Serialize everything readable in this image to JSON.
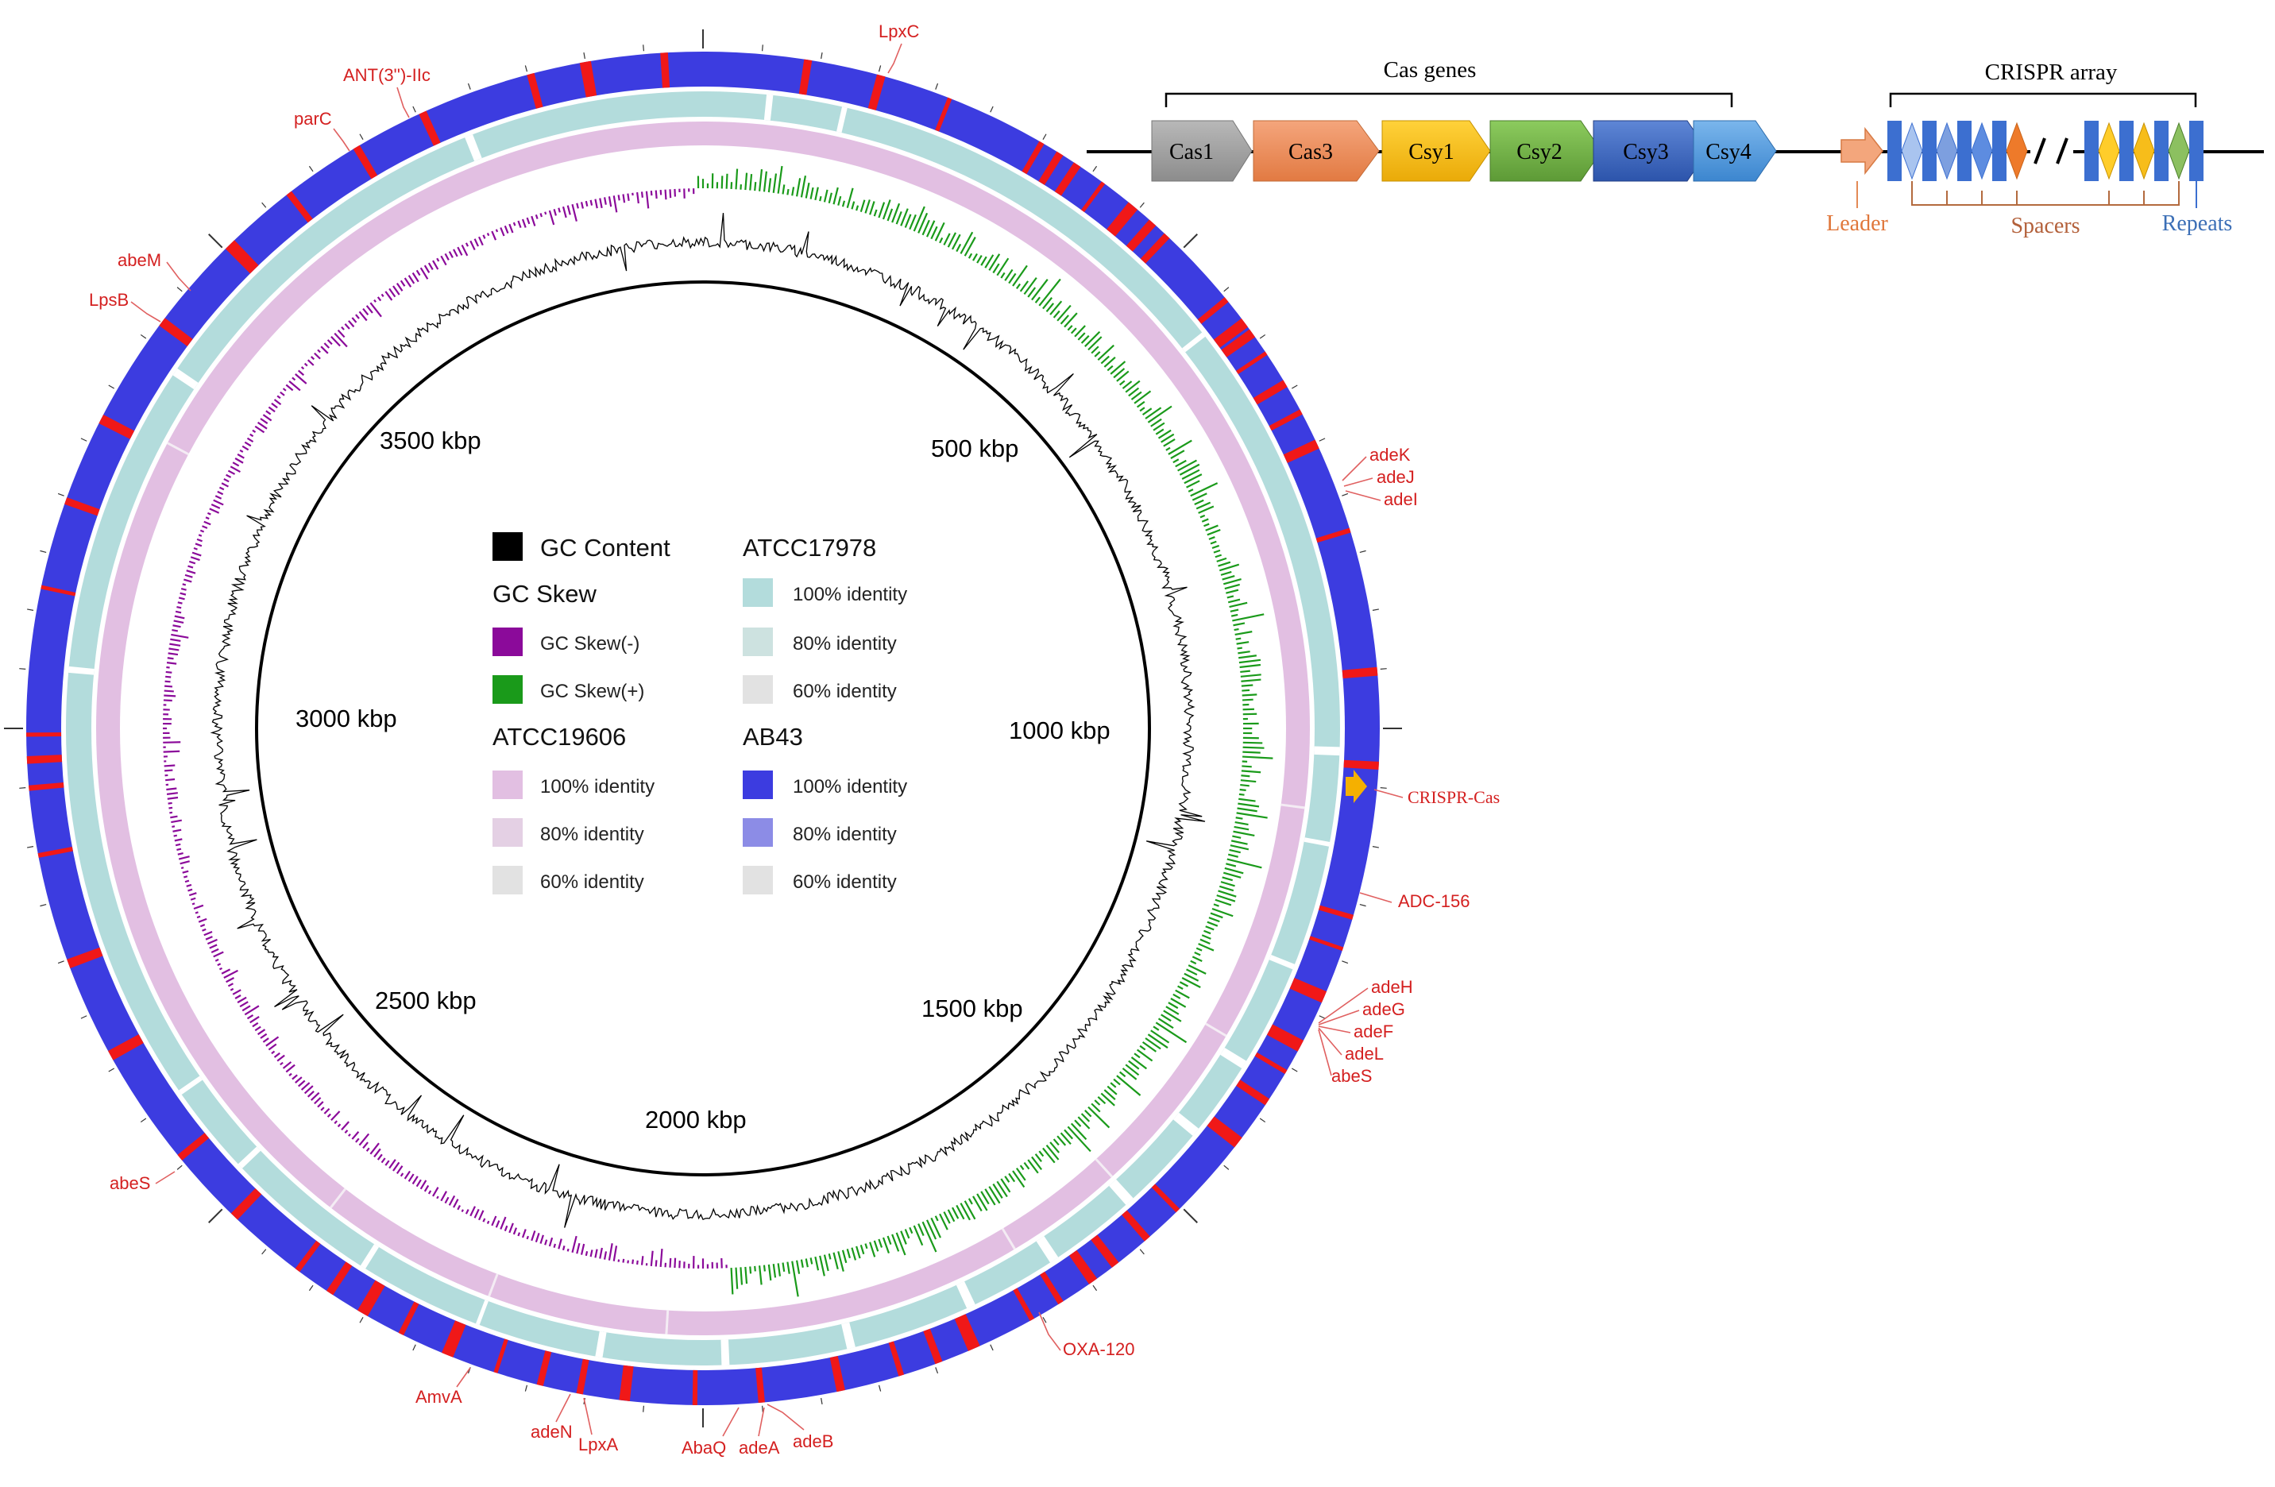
{
  "circular_map": {
    "kbp_labels": [
      "500 kbp",
      "1000 kbp",
      "1500 kbp",
      "2000 kbp",
      "2500 kbp",
      "3000 kbp",
      "3500 kbp"
    ],
    "gene_labels": [
      "LpxC",
      "ANT(3'')-IIc",
      "parC",
      "abeM",
      "LpsB",
      "adeK",
      "adeJ",
      "adeI",
      "CRISPR-Cas",
      "ADC-156",
      "adeH",
      "adeG",
      "adeF",
      "adeL",
      "abeS",
      "OXA-120",
      "adeB",
      "adeA",
      "AbaQ",
      "LpxA",
      "adeN",
      "AmvA",
      "abeS"
    ],
    "colors": {
      "ab43": "#3c3ce0",
      "atcc17978": "#b3dcdc",
      "atcc19606": "#e2bfe2",
      "gc_content": "#000000",
      "skew_minus": "#8b0a9a",
      "skew_plus": "#1a9a1a",
      "gene_label": "#d42020",
      "crispr_marker": "#f5b000"
    }
  },
  "legend": {
    "gc_content": "GC Content",
    "gc_skew": "GC Skew",
    "skew_minus": "GC Skew(-)",
    "skew_plus": "GC Skew(+)",
    "atcc19606": "ATCC19606",
    "atcc19606_100": "100% identity",
    "atcc19606_80": "80% identity",
    "atcc19606_60": "60% identity",
    "atcc17978": "ATCC17978",
    "atcc17978_100": "100% identity",
    "atcc17978_80": "80% identity",
    "atcc17978_60": "60% identity",
    "ab43": "AB43",
    "ab43_100": "100% identity",
    "ab43_80": "80% identity",
    "ab43_60": "60% identity"
  },
  "cas_diagram": {
    "cas_genes_label": "Cas genes",
    "crispr_array_label": "CRISPR array",
    "genes": [
      "Cas1",
      "Cas3",
      "Csy1",
      "Csy2",
      "Csy3",
      "Csy4"
    ],
    "leader": "Leader",
    "spacers": "Spacers",
    "repeats": "Repeats"
  }
}
